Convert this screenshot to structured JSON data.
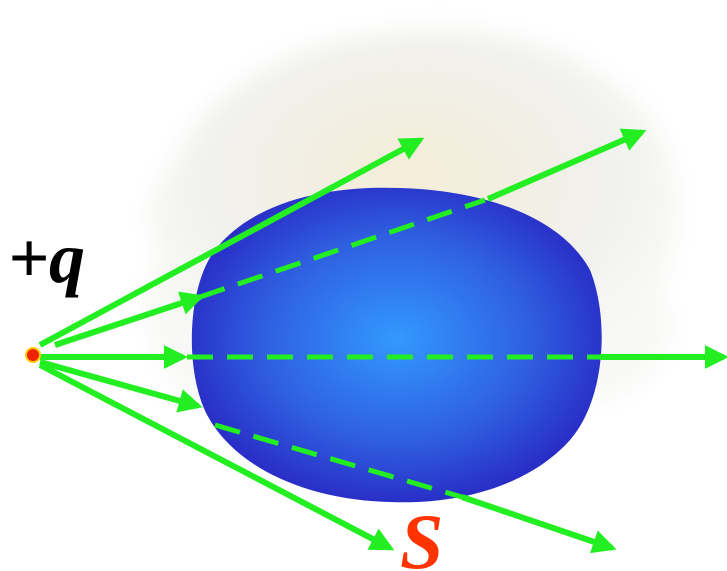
{
  "labels": {
    "charge": "+q",
    "surface": "S"
  }
}
